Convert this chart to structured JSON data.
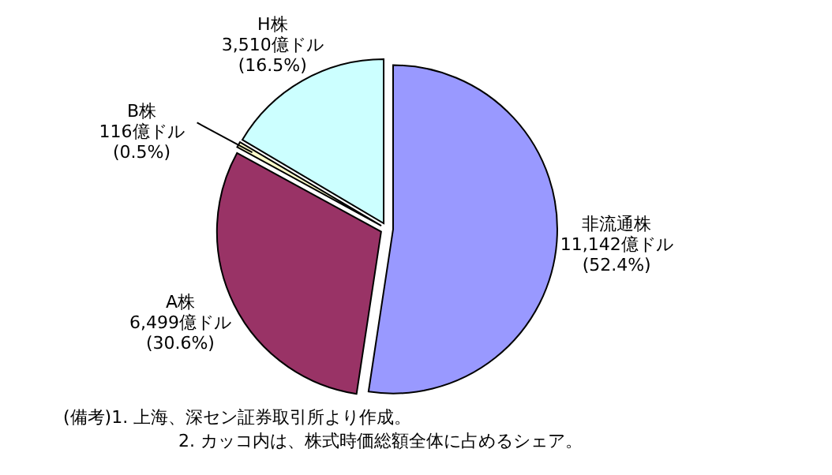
{
  "chart_data": {
    "type": "pie",
    "categories": [
      "非流通株",
      "A株",
      "B株",
      "H株"
    ],
    "values": [
      11142,
      6499,
      116,
      3510
    ],
    "value_labels": [
      "11,142億ドル\n(52.4%)",
      "6,499億ドル\n(30.6%)",
      "116億ドル\n(0.5%)",
      "3,510億ドル\n(16.5%)"
    ],
    "colors": [
      "#9999ff",
      "#993366",
      "#ffffcc",
      "#ccffff"
    ],
    "annotations": [
      "(備考)1. 上海、深セン証券取引所より作成。",
      "2. カッコ内は、株式時価総額全体に占めるシェア。"
    ]
  }
}
